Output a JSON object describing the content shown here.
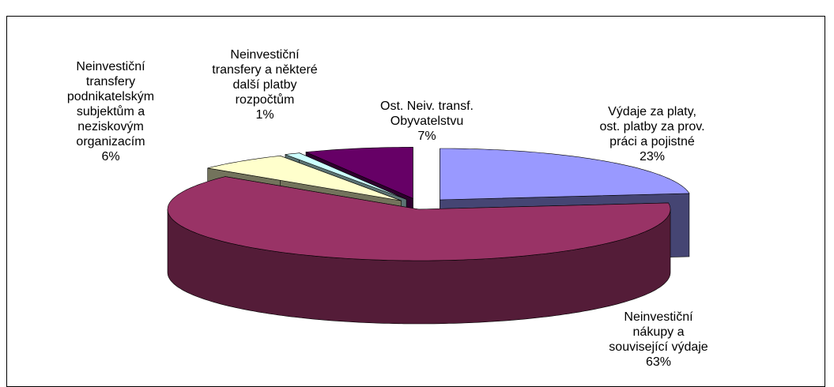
{
  "chart_data": {
    "type": "pie",
    "categories": [
      "Výdaje za platy,\nost. platby za prov.\npráci a pojistné",
      "Neinvestiční\nnákupy a\nsouvisející výdaje",
      "Neinvestiční\ntransfery\npodnikatelským\nsubjektům a\nneziskovým\norganizacím",
      "Neinvestiční\ntransfery a některé\ndalší platby\nrozpočtům",
      "Ost. Neiv. transf.\nObyvatelstvu"
    ],
    "values": [
      23,
      63,
      6,
      1,
      7
    ],
    "value_labels": [
      "23%",
      "63%",
      "6%",
      "1%",
      "7%"
    ],
    "colors": [
      "#9999ff",
      "#993366",
      "#ffffcc",
      "#ccffff",
      "#660066"
    ]
  }
}
